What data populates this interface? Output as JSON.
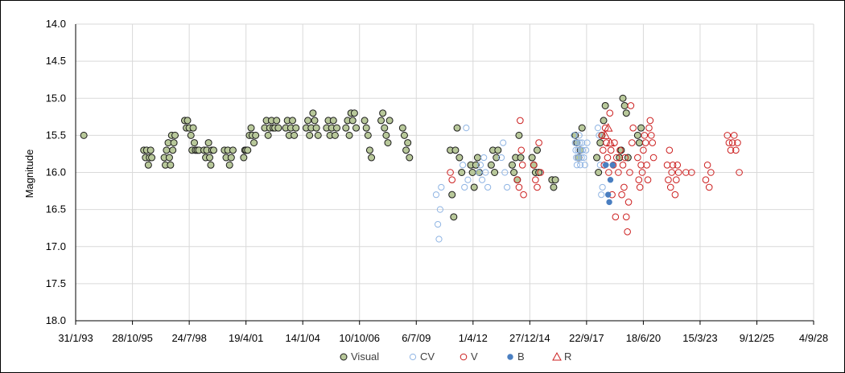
{
  "chart_data": {
    "type": "scatter",
    "title": "",
    "xlabel": "",
    "ylabel": "Magnitude",
    "y_inverted": true,
    "ylim": [
      14.0,
      18.0
    ],
    "y_ticks": [
      14.0,
      14.5,
      15.0,
      15.5,
      16.0,
      16.5,
      17.0,
      17.5,
      18.0
    ],
    "y_tick_labels": [
      "14.0",
      "14.5",
      "15.0",
      "15.5",
      "16.0",
      "16.5",
      "17.0",
      "17.5",
      "18.0"
    ],
    "x_unit": "excel serial date",
    "xlim": [
      33999,
      47000
    ],
    "x_ticks": [
      33999,
      35000,
      36000,
      37000,
      38000,
      39000,
      40000,
      41000,
      42000,
      43000,
      44000,
      45000,
      46000,
      47000
    ],
    "x_tick_labels": [
      "31/1/93",
      "28/10/95",
      "24/7/98",
      "19/4/01",
      "14/1/04",
      "10/10/06",
      "6/7/09",
      "1/4/12",
      "27/12/14",
      "22/9/17",
      "18/6/20",
      "15/3/23",
      "9/12/25",
      "4/9/28"
    ],
    "grid": true,
    "legend_position": "bottom",
    "colors": {
      "visual_fill": "#b8c89a",
      "visual_edge": "#1a1a1a",
      "cv": "#8fb4e3",
      "v": "#cc1f1f",
      "b": "#4a7fc1",
      "r": "#cc1f1f",
      "grid": "#d9d9d9",
      "axis": "#000000"
    },
    "series": [
      {
        "name": "Visual",
        "marker": "filled-circle",
        "points": [
          [
            34143,
            15.5
          ],
          [
            35200,
            15.7
          ],
          [
            35230,
            15.8
          ],
          [
            35250,
            15.7
          ],
          [
            35280,
            15.9
          ],
          [
            35300,
            15.8
          ],
          [
            35320,
            15.7
          ],
          [
            35340,
            15.8
          ],
          [
            35560,
            15.8
          ],
          [
            35580,
            15.9
          ],
          [
            35600,
            15.7
          ],
          [
            35630,
            15.6
          ],
          [
            35650,
            15.8
          ],
          [
            35670,
            15.9
          ],
          [
            35690,
            15.5
          ],
          [
            35710,
            15.7
          ],
          [
            35730,
            15.6
          ],
          [
            35750,
            15.5
          ],
          [
            35920,
            15.3
          ],
          [
            35950,
            15.4
          ],
          [
            35970,
            15.3
          ],
          [
            36000,
            15.4
          ],
          [
            36030,
            15.5
          ],
          [
            36050,
            15.7
          ],
          [
            36070,
            15.4
          ],
          [
            36090,
            15.6
          ],
          [
            36110,
            15.7
          ],
          [
            36140,
            15.7
          ],
          [
            36170,
            15.7
          ],
          [
            36260,
            15.7
          ],
          [
            36290,
            15.8
          ],
          [
            36310,
            15.7
          ],
          [
            36340,
            15.6
          ],
          [
            36360,
            15.8
          ],
          [
            36380,
            15.9
          ],
          [
            36400,
            15.7
          ],
          [
            36430,
            15.7
          ],
          [
            36620,
            15.7
          ],
          [
            36650,
            15.8
          ],
          [
            36680,
            15.7
          ],
          [
            36710,
            15.9
          ],
          [
            36740,
            15.8
          ],
          [
            36770,
            15.7
          ],
          [
            36960,
            15.8
          ],
          [
            36980,
            15.7
          ],
          [
            37000,
            15.7
          ],
          [
            37030,
            15.7
          ],
          [
            37060,
            15.5
          ],
          [
            37090,
            15.4
          ],
          [
            37110,
            15.5
          ],
          [
            37140,
            15.6
          ],
          [
            37170,
            15.5
          ],
          [
            37330,
            15.4
          ],
          [
            37360,
            15.3
          ],
          [
            37390,
            15.5
          ],
          [
            37420,
            15.4
          ],
          [
            37450,
            15.3
          ],
          [
            37480,
            15.4
          ],
          [
            37510,
            15.4
          ],
          [
            37540,
            15.3
          ],
          [
            37570,
            15.4
          ],
          [
            37700,
            15.4
          ],
          [
            37730,
            15.3
          ],
          [
            37760,
            15.5
          ],
          [
            37790,
            15.4
          ],
          [
            37820,
            15.3
          ],
          [
            37850,
            15.5
          ],
          [
            37880,
            15.4
          ],
          [
            38060,
            15.4
          ],
          [
            38090,
            15.3
          ],
          [
            38120,
            15.5
          ],
          [
            38150,
            15.4
          ],
          [
            38180,
            15.2
          ],
          [
            38210,
            15.3
          ],
          [
            38240,
            15.4
          ],
          [
            38270,
            15.5
          ],
          [
            38420,
            15.4
          ],
          [
            38450,
            15.3
          ],
          [
            38480,
            15.5
          ],
          [
            38510,
            15.4
          ],
          [
            38540,
            15.3
          ],
          [
            38570,
            15.5
          ],
          [
            38600,
            15.4
          ],
          [
            38760,
            15.4
          ],
          [
            38790,
            15.3
          ],
          [
            38820,
            15.5
          ],
          [
            38850,
            15.2
          ],
          [
            38880,
            15.3
          ],
          [
            38910,
            15.2
          ],
          [
            38940,
            15.4
          ],
          [
            39090,
            15.3
          ],
          [
            39120,
            15.4
          ],
          [
            39150,
            15.5
          ],
          [
            39180,
            15.7
          ],
          [
            39210,
            15.8
          ],
          [
            39380,
            15.3
          ],
          [
            39410,
            15.2
          ],
          [
            39440,
            15.4
          ],
          [
            39470,
            15.5
          ],
          [
            39500,
            15.6
          ],
          [
            39530,
            15.3
          ],
          [
            39760,
            15.4
          ],
          [
            39790,
            15.5
          ],
          [
            39820,
            15.7
          ],
          [
            39850,
            15.6
          ],
          [
            39880,
            15.8
          ],
          [
            40600,
            15.7
          ],
          [
            40630,
            16.3
          ],
          [
            40660,
            16.6
          ],
          [
            40690,
            15.7
          ],
          [
            40720,
            15.4
          ],
          [
            40760,
            15.8
          ],
          [
            40800,
            16.0
          ],
          [
            40960,
            15.9
          ],
          [
            40990,
            16.0
          ],
          [
            41020,
            16.2
          ],
          [
            41050,
            15.9
          ],
          [
            41080,
            15.8
          ],
          [
            41110,
            16.0
          ],
          [
            41320,
            15.9
          ],
          [
            41350,
            15.7
          ],
          [
            41380,
            16.0
          ],
          [
            41410,
            15.8
          ],
          [
            41440,
            15.7
          ],
          [
            41690,
            15.9
          ],
          [
            41720,
            16.0
          ],
          [
            41750,
            15.8
          ],
          [
            41780,
            16.1
          ],
          [
            41810,
            15.5
          ],
          [
            41840,
            15.8
          ],
          [
            42040,
            15.8
          ],
          [
            42070,
            15.9
          ],
          [
            42100,
            16.0
          ],
          [
            42130,
            15.7
          ],
          [
            42160,
            16.0
          ],
          [
            42390,
            16.1
          ],
          [
            42420,
            16.2
          ],
          [
            42450,
            16.1
          ],
          [
            42800,
            15.5
          ],
          [
            42830,
            15.6
          ],
          [
            42860,
            15.8
          ],
          [
            42890,
            15.7
          ],
          [
            42920,
            15.4
          ],
          [
            43180,
            15.8
          ],
          [
            43210,
            16.0
          ],
          [
            43240,
            15.6
          ],
          [
            43270,
            15.5
          ],
          [
            43300,
            15.3
          ],
          [
            43330,
            15.1
          ],
          [
            43580,
            15.8
          ],
          [
            43610,
            15.7
          ],
          [
            43640,
            15.0
          ],
          [
            43670,
            15.1
          ],
          [
            43700,
            15.2
          ],
          [
            43730,
            15.8
          ],
          [
            43900,
            15.5
          ],
          [
            43930,
            15.6
          ],
          [
            43960,
            15.4
          ]
        ]
      },
      {
        "name": "CV",
        "marker": "open-circle",
        "points": [
          [
            40350,
            16.3
          ],
          [
            40380,
            16.7
          ],
          [
            40400,
            16.9
          ],
          [
            40420,
            16.5
          ],
          [
            40440,
            16.2
          ],
          [
            40820,
            15.9
          ],
          [
            40850,
            16.2
          ],
          [
            40880,
            15.4
          ],
          [
            40910,
            16.1
          ],
          [
            41100,
            16.0
          ],
          [
            41130,
            15.9
          ],
          [
            41160,
            16.1
          ],
          [
            41190,
            15.8
          ],
          [
            41220,
            16.0
          ],
          [
            41260,
            16.2
          ],
          [
            41500,
            15.8
          ],
          [
            41530,
            15.6
          ],
          [
            41560,
            16.0
          ],
          [
            41600,
            16.2
          ],
          [
            42780,
            15.5
          ],
          [
            42800,
            15.6
          ],
          [
            42810,
            15.7
          ],
          [
            42820,
            15.8
          ],
          [
            42830,
            15.9
          ],
          [
            42840,
            15.6
          ],
          [
            42850,
            15.7
          ],
          [
            42860,
            15.8
          ],
          [
            42870,
            15.5
          ],
          [
            42880,
            15.6
          ],
          [
            42890,
            15.9
          ],
          [
            42900,
            15.7
          ],
          [
            42910,
            15.8
          ],
          [
            42920,
            15.6
          ],
          [
            42930,
            15.7
          ],
          [
            42950,
            15.8
          ],
          [
            42970,
            15.9
          ],
          [
            42990,
            15.7
          ],
          [
            43010,
            15.6
          ],
          [
            43200,
            15.4
          ],
          [
            43220,
            15.5
          ],
          [
            43240,
            15.9
          ],
          [
            43260,
            16.3
          ],
          [
            43280,
            16.2
          ]
        ]
      },
      {
        "name": "V",
        "marker": "open-circle",
        "points": [
          [
            40600,
            16.0
          ],
          [
            40630,
            16.1
          ],
          [
            41780,
            16.1
          ],
          [
            41810,
            16.2
          ],
          [
            41830,
            15.3
          ],
          [
            41850,
            15.7
          ],
          [
            41870,
            15.9
          ],
          [
            41890,
            16.3
          ],
          [
            42070,
            15.9
          ],
          [
            42100,
            16.1
          ],
          [
            42130,
            16.2
          ],
          [
            42160,
            15.6
          ],
          [
            42190,
            16.0
          ],
          [
            43270,
            15.5
          ],
          [
            43290,
            15.7
          ],
          [
            43310,
            15.9
          ],
          [
            43330,
            15.4
          ],
          [
            43350,
            15.6
          ],
          [
            43370,
            15.8
          ],
          [
            43390,
            16.0
          ],
          [
            43410,
            15.2
          ],
          [
            43430,
            15.7
          ],
          [
            43450,
            16.3
          ],
          [
            43470,
            15.9
          ],
          [
            43490,
            15.6
          ],
          [
            43510,
            16.6
          ],
          [
            43530,
            15.8
          ],
          [
            43560,
            16.0
          ],
          [
            43590,
            15.7
          ],
          [
            43620,
            16.3
          ],
          [
            43640,
            15.9
          ],
          [
            43660,
            16.2
          ],
          [
            43680,
            15.8
          ],
          [
            43700,
            16.6
          ],
          [
            43720,
            16.8
          ],
          [
            43740,
            16.4
          ],
          [
            43760,
            16.0
          ],
          [
            43780,
            15.1
          ],
          [
            43800,
            15.6
          ],
          [
            43820,
            15.4
          ],
          [
            43900,
            15.8
          ],
          [
            43920,
            16.1
          ],
          [
            43940,
            16.2
          ],
          [
            43960,
            15.9
          ],
          [
            43980,
            16.0
          ],
          [
            44000,
            15.7
          ],
          [
            44020,
            15.5
          ],
          [
            44040,
            15.6
          ],
          [
            44060,
            15.9
          ],
          [
            44080,
            16.1
          ],
          [
            44100,
            15.4
          ],
          [
            44120,
            15.3
          ],
          [
            44140,
            15.5
          ],
          [
            44160,
            15.6
          ],
          [
            44180,
            15.8
          ],
          [
            44420,
            15.9
          ],
          [
            44440,
            16.1
          ],
          [
            44460,
            15.7
          ],
          [
            44480,
            16.2
          ],
          [
            44500,
            16.0
          ],
          [
            44520,
            15.9
          ],
          [
            44560,
            16.3
          ],
          [
            44580,
            16.1
          ],
          [
            44600,
            15.9
          ],
          [
            44620,
            16.0
          ],
          [
            44750,
            16.0
          ],
          [
            44850,
            16.0
          ],
          [
            45100,
            16.1
          ],
          [
            45130,
            15.9
          ],
          [
            45160,
            16.2
          ],
          [
            45190,
            16.0
          ],
          [
            45480,
            15.5
          ],
          [
            45510,
            15.6
          ],
          [
            45540,
            15.7
          ],
          [
            45570,
            15.6
          ],
          [
            45600,
            15.5
          ],
          [
            45630,
            15.7
          ],
          [
            45660,
            15.6
          ],
          [
            45690,
            16.0
          ]
        ]
      },
      {
        "name": "B",
        "marker": "filled-circle",
        "points": [
          [
            43340,
            15.9
          ],
          [
            43380,
            16.3
          ],
          [
            43400,
            16.4
          ],
          [
            43420,
            16.1
          ],
          [
            43460,
            15.9
          ]
        ]
      },
      {
        "name": "R",
        "marker": "open-triangle",
        "points": [
          [
            43330,
            15.5
          ],
          [
            43380,
            15.4
          ],
          [
            43420,
            15.6
          ]
        ]
      }
    ]
  }
}
